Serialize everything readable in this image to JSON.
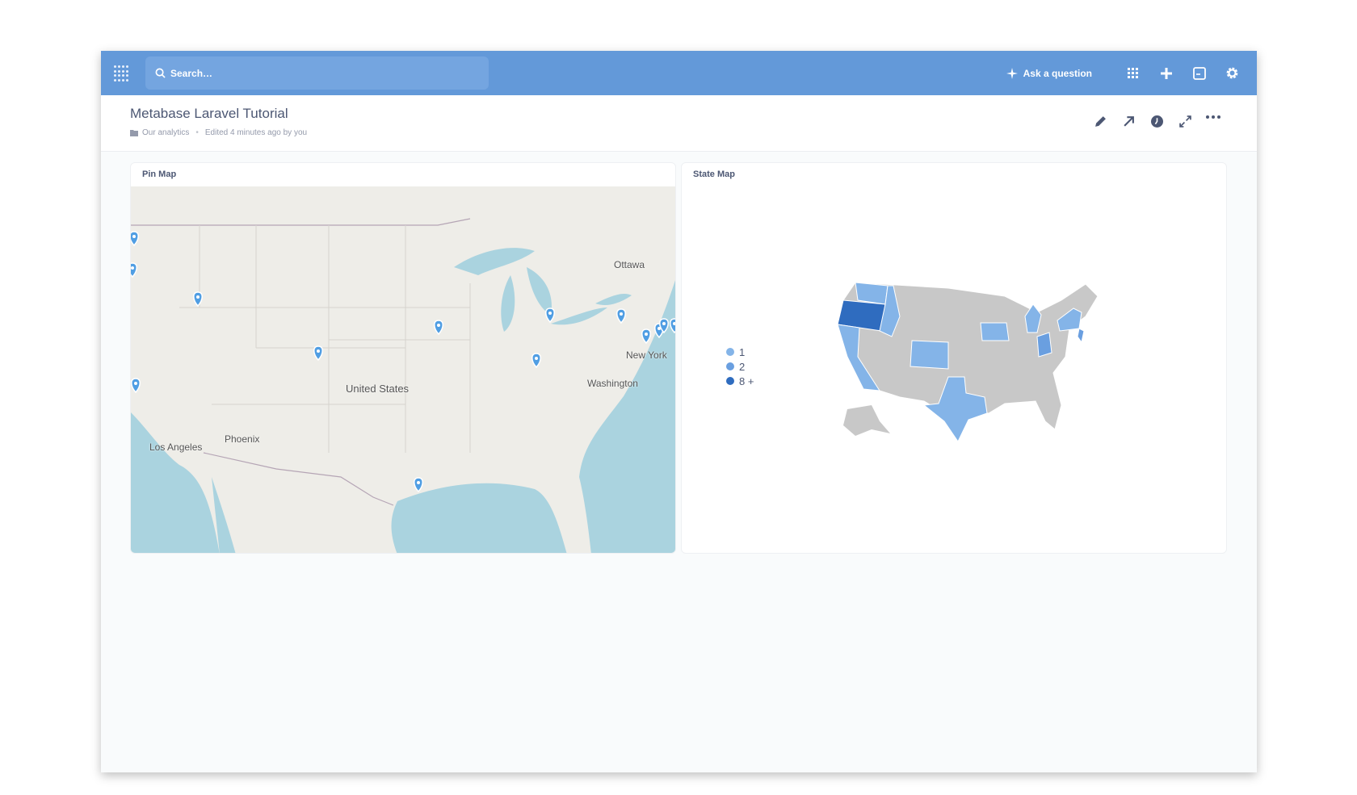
{
  "nav": {
    "search_placeholder": "Search…",
    "ask_label": "Ask a question",
    "icons": [
      "metabase-logo",
      "search-icon",
      "sparkle-icon",
      "apps-grid-icon",
      "plus-icon",
      "terminal-icon",
      "gear-icon"
    ]
  },
  "dashboard": {
    "title": "Metabase Laravel Tutorial",
    "collection": "Our analytics",
    "separator": "•",
    "edited": "Edited 4 minutes ago by you",
    "actions": [
      "pencil-icon",
      "share-arrow-icon",
      "clock-icon",
      "fullscreen-icon",
      "more-icon"
    ]
  },
  "cards": [
    {
      "title": "Pin Map",
      "labels": {
        "ottawa": "Ottawa",
        "new_york": "New York",
        "washington": "Washington",
        "united_states": "United States",
        "phoenix": "Phoenix",
        "los_angeles": "Los Angeles"
      }
    },
    {
      "title": "State Map",
      "legend": [
        {
          "label": "1",
          "color": "#84b4e8"
        },
        {
          "label": "2",
          "color": "#6a9fe0"
        },
        {
          "label": "8 +",
          "color": "#2f6cbf"
        }
      ]
    }
  ],
  "colors": {
    "nav": "#6399d9",
    "pin": "#509ee3",
    "state_default": "#c8c8c8",
    "water": "#aad3df"
  }
}
